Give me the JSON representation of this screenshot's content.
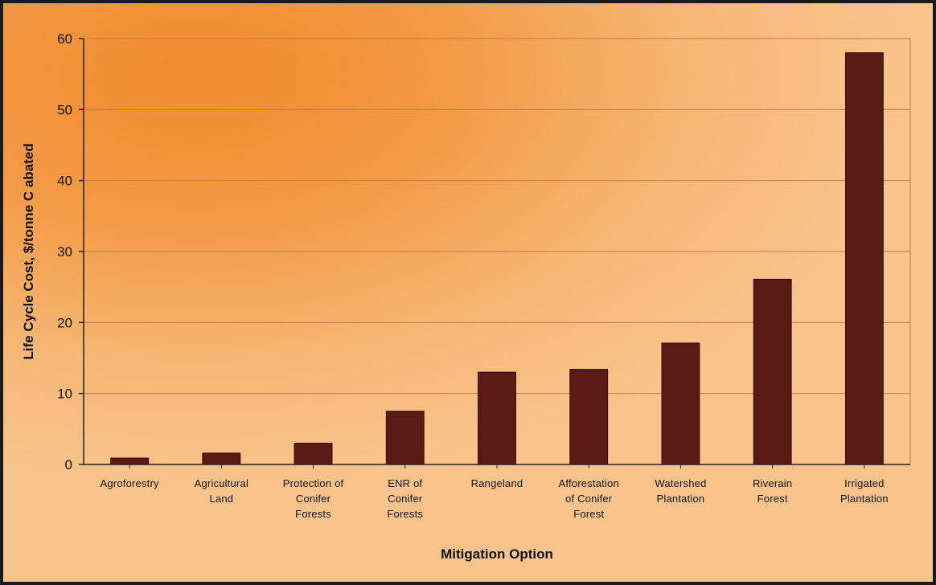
{
  "chart_data": {
    "type": "bar",
    "title": "",
    "xlabel": "Mitigation Option",
    "ylabel": "Life Cycle Cost, $/tonne C abated",
    "ylim": [
      0,
      60
    ],
    "yticks": [
      0,
      10,
      20,
      30,
      40,
      50,
      60
    ],
    "grid": true,
    "categories": [
      [
        "Agroforestry"
      ],
      [
        "Agricultural",
        "Land"
      ],
      [
        "Protection of",
        "Conifer",
        "Forests"
      ],
      [
        "ENR of",
        "Conifer",
        "Forests"
      ],
      [
        "Rangeland"
      ],
      [
        "Afforestation",
        "of Conifer",
        "Forest"
      ],
      [
        "Watershed",
        "Plantation"
      ],
      [
        "Riverain",
        "Forest"
      ],
      [
        "Irrigated",
        "Plantation"
      ]
    ],
    "values": [
      0.9,
      1.6,
      3.0,
      7.5,
      13.0,
      13.4,
      17.1,
      26.1,
      58.0
    ],
    "colors": {
      "bar": "#5a1a16",
      "bar_edge": "#2a0a08",
      "grid": "#c07a4a",
      "axis": "#222222"
    }
  }
}
